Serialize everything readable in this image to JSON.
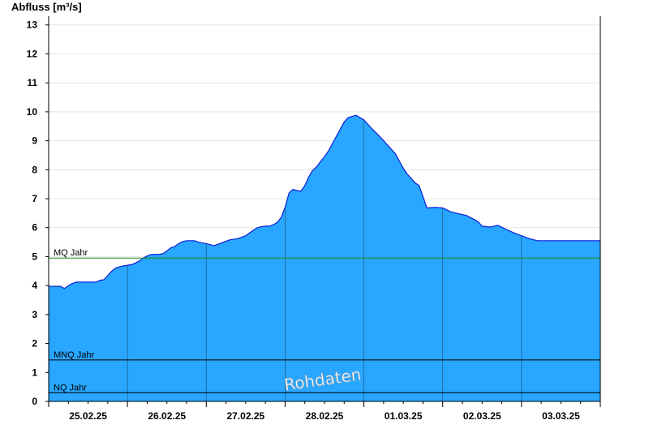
{
  "chart_data": {
    "type": "area",
    "title": "",
    "ylabel": "Abfluss [m³/s]",
    "xlabel": "",
    "ylim": [
      0,
      13.3
    ],
    "yticks": [
      0,
      1,
      2,
      3,
      4,
      5,
      6,
      7,
      8,
      9,
      10,
      11,
      12,
      13
    ],
    "xlim": [
      0,
      7
    ],
    "xtick_labels": [
      "25.02.25",
      "26.02.25",
      "27.02.25",
      "28.02.25",
      "01.03.25",
      "02.03.25",
      "03.03.25"
    ],
    "grid": "horizontal",
    "fill_color": "#29a6ff",
    "line_color": "#0a1ed8",
    "series": [
      {
        "x": [
          0,
          0.15,
          0.2,
          0.28,
          0.35,
          0.45,
          0.55,
          0.6,
          0.65,
          0.7,
          0.75,
          0.8,
          0.85,
          0.9,
          0.95,
          1.0,
          1.05,
          1.1,
          1.15,
          1.2,
          1.25,
          1.3,
          1.4,
          1.45,
          1.5,
          1.55,
          1.6,
          1.65,
          1.7,
          1.75,
          1.8,
          1.85,
          1.9,
          2.0,
          2.1,
          2.2,
          2.3,
          2.4,
          2.5,
          2.55,
          2.6,
          2.65,
          2.7,
          2.75,
          2.8,
          2.85,
          2.9,
          2.95,
          3.0,
          3.05,
          3.1,
          3.15,
          3.2,
          3.25,
          3.3,
          3.35,
          3.4,
          3.45,
          3.5,
          3.55,
          3.6,
          3.65,
          3.7,
          3.75,
          3.8,
          3.9,
          4.0,
          4.1,
          4.2,
          4.3,
          4.4,
          4.45,
          4.5,
          4.55,
          4.6,
          4.65,
          4.7,
          4.8,
          4.9,
          5.0,
          5.1,
          5.2,
          5.3,
          5.35,
          5.4,
          5.45,
          5.5,
          5.6,
          5.7,
          5.8,
          5.9,
          6.0,
          6.1,
          6.2,
          6.3,
          6.4,
          6.5,
          6.6,
          6.7,
          6.8,
          6.9,
          7.0
        ],
        "values": [
          3.97,
          3.97,
          3.9,
          4.05,
          4.12,
          4.12,
          4.12,
          4.12,
          4.18,
          4.2,
          4.35,
          4.5,
          4.6,
          4.65,
          4.68,
          4.7,
          4.72,
          4.78,
          4.85,
          4.95,
          5.02,
          5.07,
          5.08,
          5.1,
          5.2,
          5.3,
          5.35,
          5.45,
          5.52,
          5.55,
          5.55,
          5.55,
          5.5,
          5.45,
          5.38,
          5.48,
          5.58,
          5.62,
          5.72,
          5.82,
          5.92,
          6.0,
          6.03,
          6.05,
          6.05,
          6.1,
          6.18,
          6.35,
          6.7,
          7.2,
          7.32,
          7.28,
          7.26,
          7.45,
          7.75,
          7.98,
          8.1,
          8.28,
          8.45,
          8.65,
          8.9,
          9.15,
          9.4,
          9.65,
          9.8,
          9.88,
          9.72,
          9.42,
          9.15,
          8.85,
          8.55,
          8.3,
          8.05,
          7.85,
          7.7,
          7.55,
          7.45,
          6.68,
          6.7,
          6.68,
          6.55,
          6.48,
          6.42,
          6.35,
          6.28,
          6.2,
          6.05,
          6.02,
          6.08,
          5.95,
          5.82,
          5.72,
          5.62,
          5.55,
          5.55,
          5.55,
          5.55,
          5.55,
          5.55,
          5.55,
          5.55,
          5.55
        ]
      }
    ],
    "reference_lines": [
      {
        "label": "MQ Jahr",
        "value": 4.95,
        "color": "#1a8a1a"
      },
      {
        "label": "MNQ Jahr",
        "value": 1.43,
        "color": "#000000"
      },
      {
        "label": "NQ Jahr",
        "value": 0.3,
        "color": "#000000"
      }
    ],
    "watermark": "Rohdaten"
  }
}
